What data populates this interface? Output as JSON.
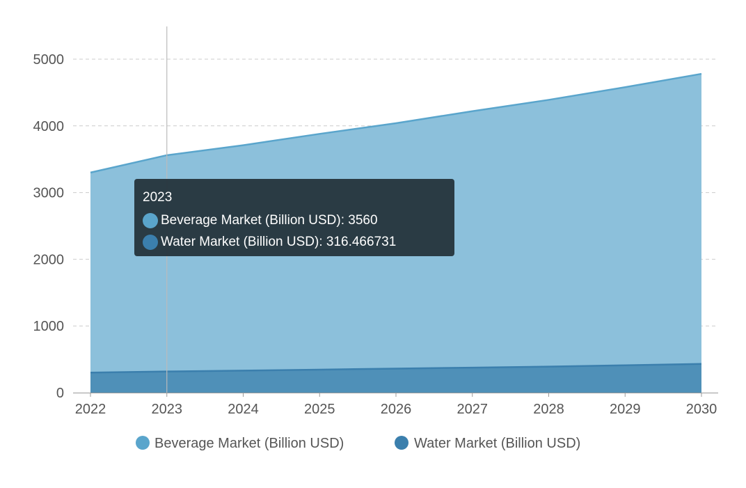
{
  "chart_data": {
    "type": "area",
    "stacked": true,
    "x": [
      "2022",
      "2023",
      "2024",
      "2025",
      "2026",
      "2027",
      "2028",
      "2029",
      "2030"
    ],
    "series": [
      {
        "name": "Water Market (Billion USD)",
        "color": "#3b7fad",
        "values": [
          300,
          316.466731,
          330,
          345,
          360,
          375,
          390,
          410,
          430
        ]
      },
      {
        "name": "Beverage Market (Billion USD)",
        "color": "#5aa5cc",
        "values": [
          3300,
          3560,
          3710,
          3880,
          4040,
          4220,
          4390,
          4580,
          4780
        ]
      }
    ],
    "y_ticks": [
      "0",
      "1000",
      "2000",
      "3000",
      "4000",
      "5000"
    ],
    "ylim": [
      0,
      5000
    ],
    "grid": true,
    "legend_position": "bottom",
    "legend": [
      {
        "label": "Beverage Market (Billion USD)",
        "color": "#5aa5cc"
      },
      {
        "label": "Water Market (Billion USD)",
        "color": "#3b7fad"
      }
    ],
    "tooltip": {
      "title": "2023",
      "rows": [
        {
          "text": "Beverage Market (Billion USD): 3560",
          "color": "#5aa5cc"
        },
        {
          "text": "Water Market (Billion USD): 316.466731",
          "color": "#3b7fad"
        }
      ]
    }
  }
}
